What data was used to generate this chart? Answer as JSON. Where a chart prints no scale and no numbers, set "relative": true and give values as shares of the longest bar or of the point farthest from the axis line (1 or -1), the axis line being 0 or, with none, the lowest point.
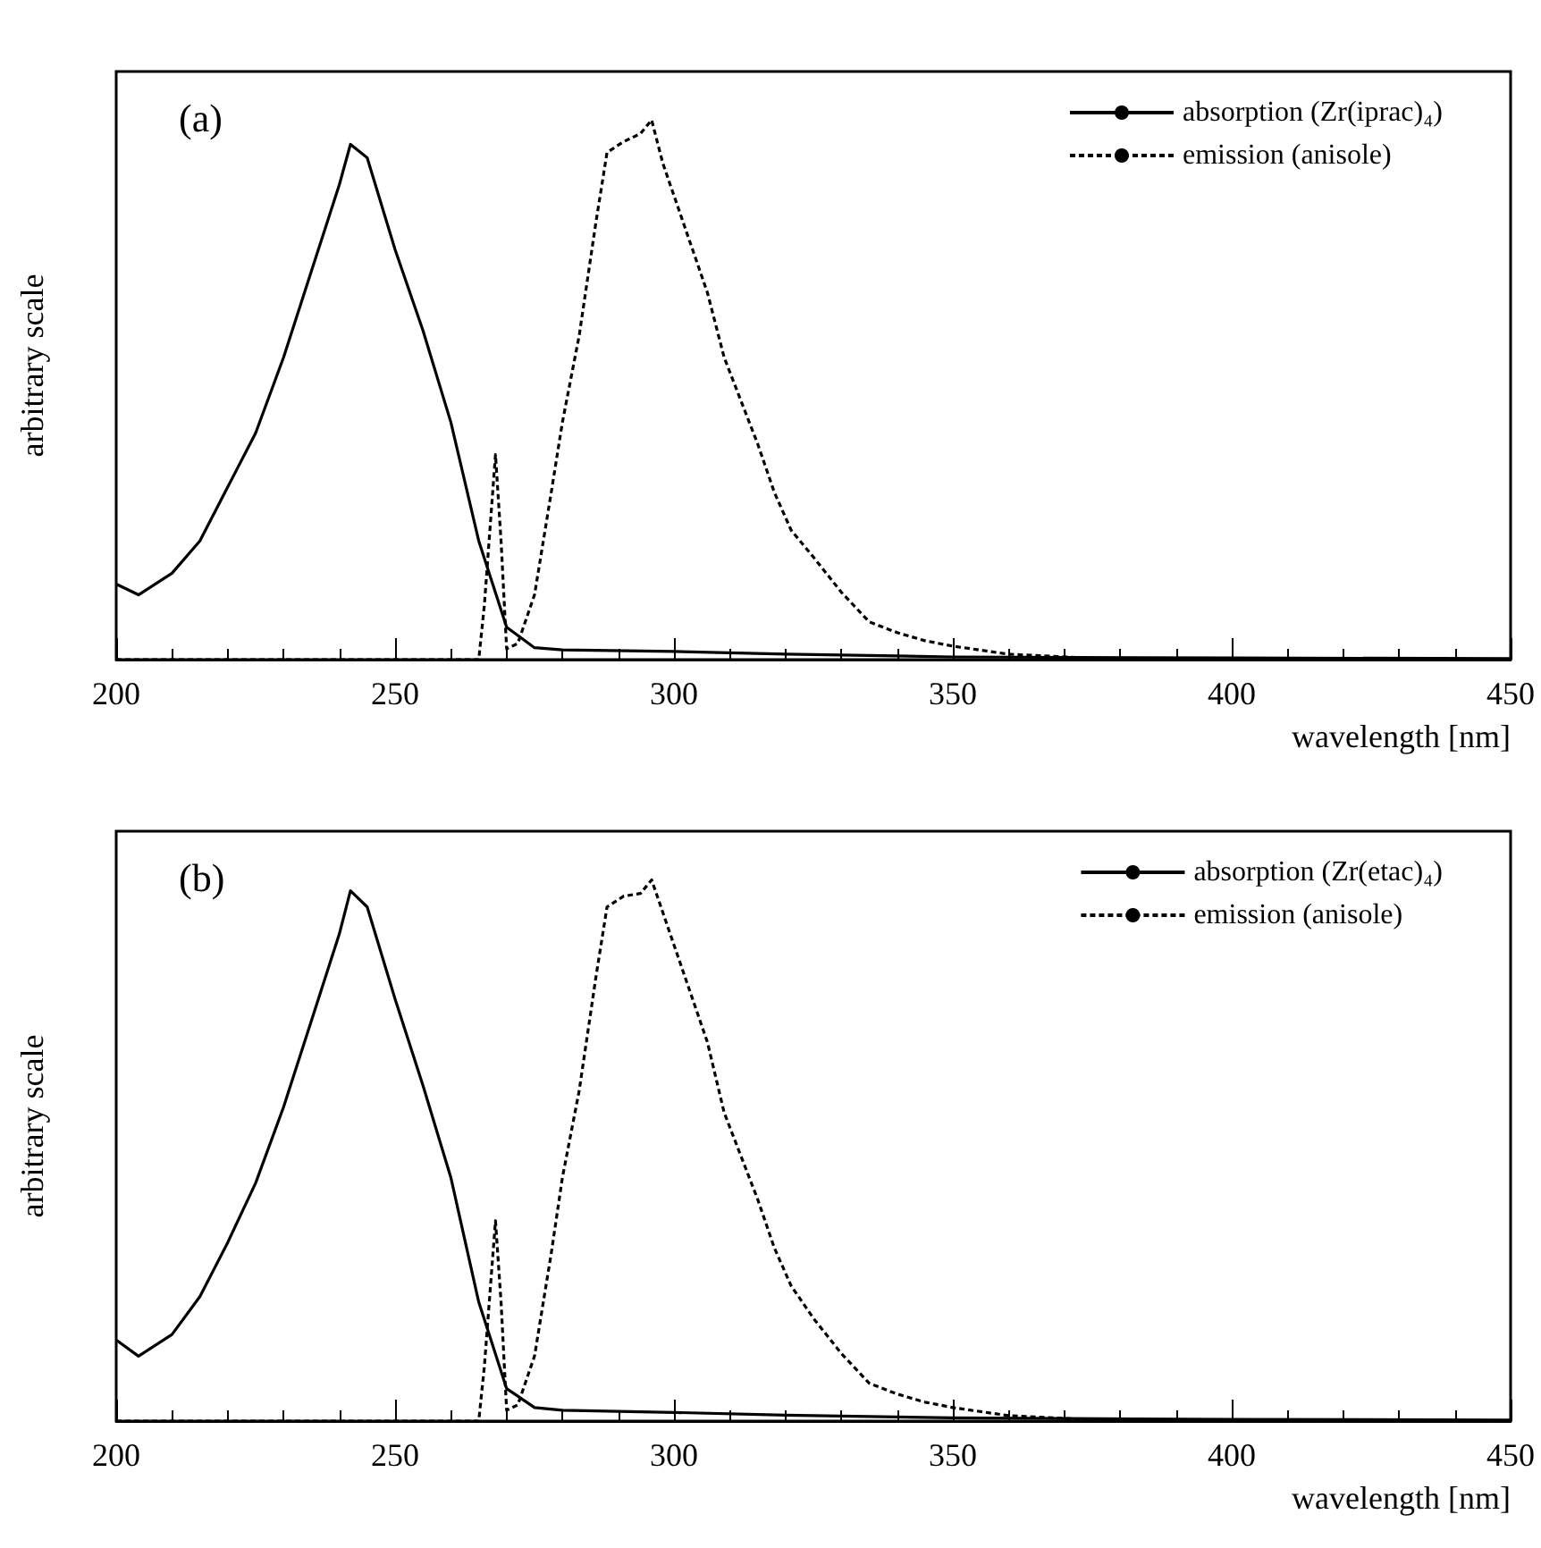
{
  "chart_data": [
    {
      "type": "line",
      "title": "(a)",
      "xlabel": "wavelength [nm]",
      "ylabel": "arbitrary scale",
      "relative": true,
      "xlim": [
        200,
        450
      ],
      "xticks": [
        200,
        250,
        300,
        350,
        400,
        450
      ],
      "legend": "top right",
      "grid": false,
      "marker": "none",
      "series": [
        {
          "name": "absorption (Zr(iprac)₄)",
          "color": "#000000",
          "line_style": "solid",
          "x": [
            200,
            204,
            210,
            215,
            220,
            225,
            230,
            235,
            240,
            242,
            245,
            250,
            255,
            260,
            265,
            270,
            275,
            280,
            300,
            320,
            350,
            400,
            450
          ],
          "values": [
            0.14,
            0.12,
            0.16,
            0.22,
            0.32,
            0.42,
            0.56,
            0.72,
            0.88,
            0.955,
            0.93,
            0.76,
            0.61,
            0.44,
            0.22,
            0.06,
            0.022,
            0.018,
            0.015,
            0.01,
            0.005,
            0.003,
            0.002
          ]
        },
        {
          "name": "emission (anisole)",
          "color": "#000000",
          "line_style": "dotted",
          "x": [
            200,
            265,
            266,
            268,
            269,
            270,
            272,
            275,
            278,
            280,
            283,
            286,
            288,
            291,
            294,
            296,
            298,
            300,
            303,
            306,
            309,
            312,
            315,
            318,
            321,
            325,
            330,
            335,
            340,
            345,
            350,
            360,
            370,
            380,
            450
          ],
          "values": [
            0,
            0,
            0.1,
            0.38,
            0.22,
            0.02,
            0.03,
            0.12,
            0.31,
            0.44,
            0.6,
            0.81,
            0.94,
            0.96,
            0.975,
            1,
            0.92,
            0.86,
            0.77,
            0.68,
            0.56,
            0.48,
            0.4,
            0.31,
            0.24,
            0.19,
            0.125,
            0.07,
            0.05,
            0.035,
            0.025,
            0.01,
            0.005,
            0,
            0
          ]
        }
      ]
    },
    {
      "type": "line",
      "title": "(b)",
      "xlabel": "wavelength [nm]",
      "ylabel": "arbitrary scale",
      "relative": true,
      "xlim": [
        200,
        450
      ],
      "xticks": [
        200,
        250,
        300,
        350,
        400,
        450
      ],
      "legend": "top right",
      "grid": false,
      "marker": "none",
      "series": [
        {
          "name": "absorption (Zr(etac)₄)",
          "color": "#000000",
          "line_style": "solid",
          "x": [
            200,
            204,
            210,
            215,
            220,
            225,
            230,
            235,
            240,
            242,
            245,
            250,
            255,
            260,
            265,
            270,
            275,
            280,
            300,
            320,
            350,
            400,
            450
          ],
          "values": [
            0.15,
            0.12,
            0.16,
            0.23,
            0.33,
            0.44,
            0.58,
            0.74,
            0.9,
            0.98,
            0.95,
            0.78,
            0.62,
            0.45,
            0.22,
            0.06,
            0.025,
            0.02,
            0.016,
            0.011,
            0.006,
            0.003,
            0.002
          ]
        },
        {
          "name": "emission (anisole)",
          "color": "#000000",
          "line_style": "dotted",
          "x": [
            200,
            265,
            266,
            268,
            269,
            270,
            272,
            275,
            278,
            280,
            283,
            286,
            288,
            291,
            294,
            296,
            298,
            300,
            303,
            306,
            309,
            312,
            315,
            318,
            321,
            325,
            330,
            335,
            340,
            345,
            350,
            360,
            370,
            380,
            450
          ],
          "values": [
            0,
            0,
            0.1,
            0.37,
            0.22,
            0.02,
            0.03,
            0.12,
            0.31,
            0.45,
            0.61,
            0.82,
            0.95,
            0.97,
            0.975,
            1,
            0.94,
            0.88,
            0.79,
            0.7,
            0.57,
            0.49,
            0.41,
            0.32,
            0.25,
            0.19,
            0.125,
            0.07,
            0.05,
            0.035,
            0.025,
            0.01,
            0.005,
            0,
            0
          ]
        }
      ]
    }
  ]
}
